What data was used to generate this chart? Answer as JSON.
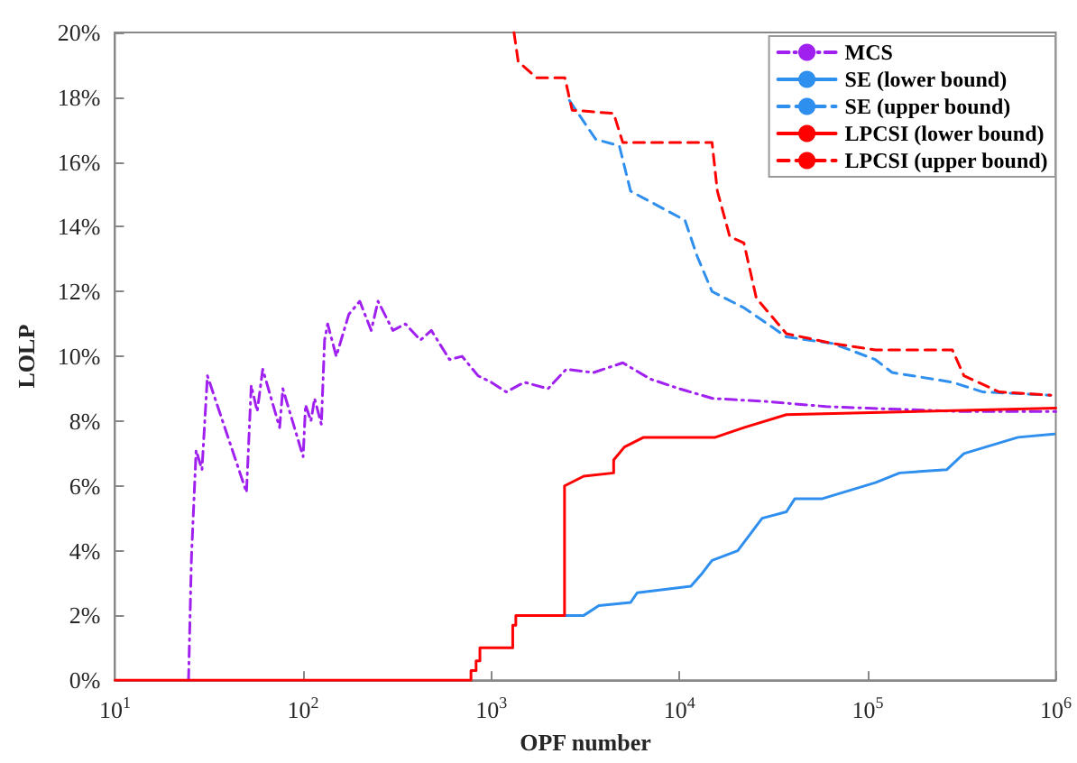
{
  "chart_data": {
    "type": "line",
    "xlabel": "OPF number",
    "ylabel": "LOLP",
    "log": "x",
    "xlim": [
      10,
      1000000
    ],
    "ylim": [
      0,
      20
    ],
    "xticks": [
      {
        "value": 10,
        "label": "10$^{1}$"
      },
      {
        "value": 100,
        "label": "10$^{2}$"
      },
      {
        "value": 1000,
        "label": "10$^{3}$"
      },
      {
        "value": 10000,
        "label": "10$^{4}$"
      },
      {
        "value": 100000,
        "label": "10$^{5}$"
      },
      {
        "value": 1000000,
        "label": "10$^{6}$"
      }
    ],
    "yticks": [
      {
        "value": 0,
        "label": "0%"
      },
      {
        "value": 2,
        "label": "2%"
      },
      {
        "value": 4,
        "label": "4%"
      },
      {
        "value": 6,
        "label": "6%"
      },
      {
        "value": 8,
        "label": "8%"
      },
      {
        "value": 10,
        "label": "10%"
      },
      {
        "value": 12,
        "label": "12%"
      },
      {
        "value": 14,
        "label": "14%"
      },
      {
        "value": 16,
        "label": "16%"
      },
      {
        "value": 18,
        "label": "18%"
      },
      {
        "value": 20,
        "label": "20%"
      }
    ],
    "grid": false,
    "legend": "top right",
    "marker": "none",
    "series": [
      {
        "name": "MCS",
        "color": "#a020f0",
        "line_style": "dashdot",
        "x": [
          24.6,
          25.5,
          27,
          29,
          31,
          50,
          53,
          57,
          61,
          75,
          78,
          100,
          103,
          110,
          115,
          125,
          130,
          135,
          150,
          175,
          200,
          230,
          250,
          300,
          350,
          420,
          480,
          600,
          700,
          850,
          1000,
          1200,
          1500,
          2000,
          2500,
          3500,
          5000,
          7000,
          10000,
          15000,
          30000,
          60000,
          100000,
          300000,
          1000000
        ],
        "values": [
          0,
          3.8,
          7.1,
          6.5,
          9.4,
          5.8,
          9.1,
          8.3,
          9.6,
          7.8,
          9,
          6.9,
          8.5,
          8,
          8.7,
          7.9,
          10.5,
          11,
          10,
          11.3,
          11.7,
          10.8,
          11.7,
          10.8,
          11,
          10.5,
          10.8,
          9.9,
          10,
          9.4,
          9.2,
          8.9,
          9.2,
          9,
          9.6,
          9.5,
          9.8,
          9.3,
          9,
          8.7,
          8.6,
          8.45,
          8.4,
          8.3,
          8.3
        ]
      },
      {
        "name": "SE (lower bound)",
        "color": "#2e8fef",
        "line_style": "solid",
        "x": [
          2460,
          3100,
          3730,
          5500,
          5960,
          11500,
          13200,
          14900,
          20400,
          27500,
          37000,
          41000,
          57000,
          110000,
          148000,
          263000,
          325000,
          630000,
          980000
        ],
        "values": [
          2,
          2,
          2.3,
          2.4,
          2.7,
          2.9,
          3.3,
          3.7,
          4,
          5,
          5.2,
          5.6,
          5.6,
          6.1,
          6.4,
          6.5,
          7,
          7.5,
          7.6
        ]
      },
      {
        "name": "SE (upper bound)",
        "color": "#2e8fef",
        "line_style": "dashed",
        "x": [
          2600,
          3590,
          4790,
          5500,
          7400,
          10700,
          12400,
          14900,
          22000,
          37000,
          65000,
          110000,
          135000,
          282000,
          410000,
          940000
        ],
        "values": [
          17.9,
          16.7,
          16.5,
          15.1,
          14.7,
          14.2,
          13.1,
          12,
          11.5,
          10.6,
          10.4,
          9.9,
          9.5,
          9.2,
          8.9,
          8.8
        ]
      },
      {
        "name": "LPCSI (lower bound)",
        "color": "#ff0000",
        "line_style": "solid",
        "x": [
          10,
          780,
          780,
          830,
          830,
          870,
          870,
          1300,
          1300,
          1350,
          1350,
          2450,
          2450,
          3100,
          4470,
          4470,
          5100,
          6450,
          15500,
          22000,
          37000,
          1000000
        ],
        "values": [
          0,
          0,
          0.3,
          0.3,
          0.6,
          0.6,
          1,
          1,
          1.7,
          1.7,
          2,
          2,
          6,
          6.3,
          6.4,
          6.8,
          7.2,
          7.5,
          7.5,
          7.8,
          8.2,
          8.4
        ]
      },
      {
        "name": "LPCSI (upper bound)",
        "color": "#ff0000",
        "line_style": "dashed",
        "x": [
          1320,
          1390,
          1740,
          2460,
          2690,
          4470,
          5000,
          14900,
          15900,
          18500,
          22000,
          25600,
          37000,
          65000,
          110000,
          282000,
          325000,
          500000,
          940000
        ],
        "values": [
          20,
          19.1,
          18.6,
          18.6,
          17.6,
          17.5,
          16.6,
          16.6,
          15.1,
          13.7,
          13.5,
          11.8,
          10.7,
          10.4,
          10.2,
          10.2,
          9.4,
          8.9,
          8.8
        ]
      }
    ]
  }
}
